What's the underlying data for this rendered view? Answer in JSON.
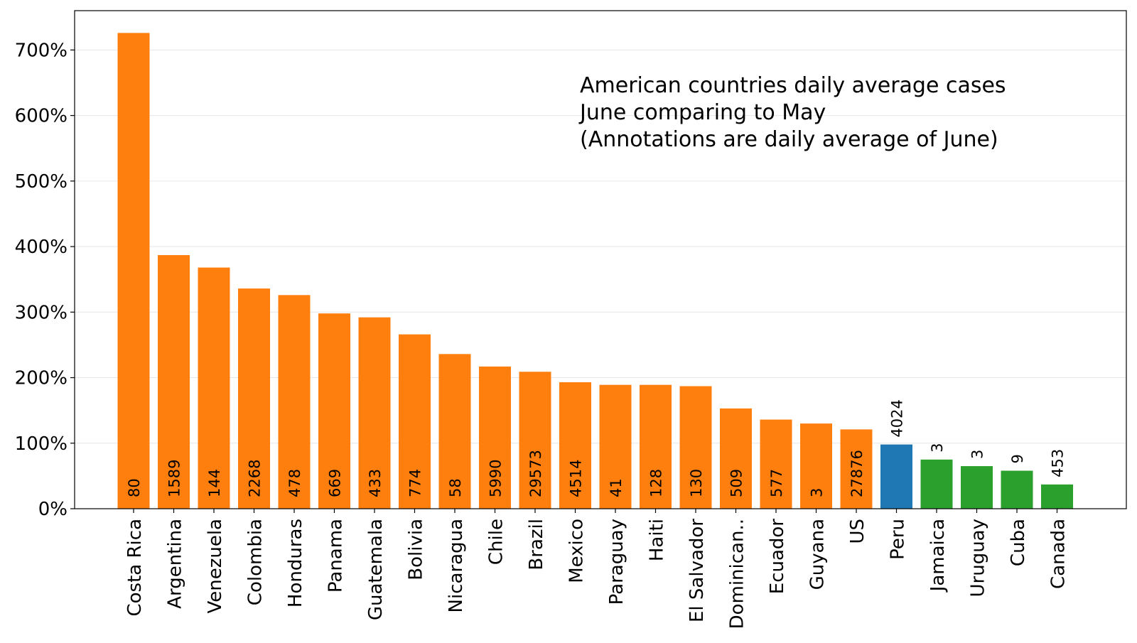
{
  "chart_data": {
    "type": "bar",
    "title_lines": [
      "American countries daily average cases",
      "June comparing to May",
      "(Annotations are daily average of June)"
    ],
    "xlabel": "",
    "ylabel": "",
    "ylim": [
      0,
      760
    ],
    "yticks": [
      0,
      100,
      200,
      300,
      400,
      500,
      600,
      700
    ],
    "ytick_labels": [
      "0%",
      "100%",
      "200%",
      "300%",
      "400%",
      "500%",
      "600%",
      "700%"
    ],
    "grid": "horizontal",
    "legend": "none",
    "categories": [
      "Costa Rica",
      "Argentina",
      "Venezuela",
      "Colombia",
      "Honduras",
      "Panama",
      "Guatemala",
      "Bolivia",
      "Nicaragua",
      "Chile",
      "Brazil",
      "Mexico",
      "Paraguay",
      "Haiti",
      "El Salvador",
      "Dominican..",
      "Ecuador",
      "Guyana",
      "US",
      "Peru",
      "Jamaica",
      "Uruguay",
      "Cuba",
      "Canada"
    ],
    "values": [
      726,
      387,
      368,
      336,
      326,
      298,
      292,
      266,
      236,
      217,
      209,
      193,
      189,
      189,
      187,
      153,
      136,
      130,
      121,
      98,
      75,
      65,
      58,
      37
    ],
    "annotations": [
      "80",
      "1589",
      "144",
      "2268",
      "478",
      "669",
      "433",
      "774",
      "58",
      "5990",
      "29573",
      "4514",
      "41",
      "128",
      "130",
      "509",
      "577",
      "3",
      "27876",
      "4024",
      "3",
      "3",
      "9",
      "453"
    ],
    "bar_groups": [
      "orange",
      "orange",
      "orange",
      "orange",
      "orange",
      "orange",
      "orange",
      "orange",
      "orange",
      "orange",
      "orange",
      "orange",
      "orange",
      "orange",
      "orange",
      "orange",
      "orange",
      "orange",
      "orange",
      "blue",
      "green",
      "green",
      "green",
      "green"
    ],
    "colors": {
      "orange": "#ff7f0e",
      "blue": "#1f77b4",
      "green": "#2ca02c"
    }
  }
}
